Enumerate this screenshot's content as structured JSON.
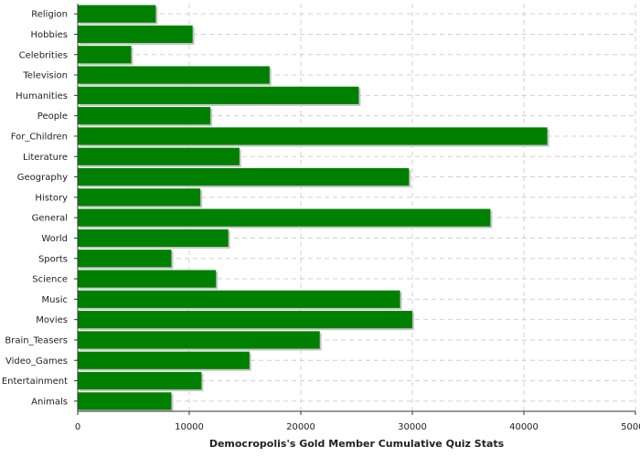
{
  "chart_data": {
    "type": "bar",
    "orientation": "horizontal",
    "categories": [
      "Religion",
      "Hobbies",
      "Celebrities",
      "Television",
      "Humanities",
      "People",
      "For_Children",
      "Literature",
      "Geography",
      "History",
      "General",
      "World",
      "Sports",
      "Science",
      "Music",
      "Movies",
      "Brain_Teasers",
      "Video_Games",
      "Entertainment",
      "Animals"
    ],
    "values": [
      7000,
      10300,
      4800,
      17200,
      25200,
      11900,
      42100,
      14500,
      29700,
      11000,
      37000,
      13500,
      8400,
      12400,
      28900,
      30000,
      21700,
      15400,
      11100,
      8400
    ],
    "xlabel": "Democropolis's Gold Member Cumulative Quiz Stats",
    "ylabel": "",
    "title": "",
    "xlim": [
      0,
      50000
    ],
    "xticks": [
      0,
      10000,
      20000,
      30000,
      40000,
      50000
    ],
    "grid": true,
    "bar_color": "#008000",
    "bar_shadow_color": "#c8c8c8"
  }
}
